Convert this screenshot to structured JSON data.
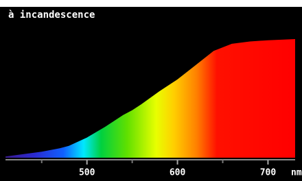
{
  "chart_data": {
    "type": "area",
    "title": "à incandescence",
    "x": [
      410,
      430,
      450,
      470,
      480,
      500,
      520,
      540,
      550,
      560,
      580,
      600,
      620,
      640,
      660,
      680,
      700,
      730
    ],
    "values": [
      1,
      3,
      5,
      8,
      10,
      17,
      26,
      36,
      40,
      45,
      56,
      66,
      78,
      90,
      96,
      98,
      99,
      100
    ],
    "xlim": [
      410,
      730
    ],
    "ylim": [
      0,
      100
    ],
    "xticks": [
      500,
      600,
      700
    ],
    "xminorticks": [
      450,
      550,
      650
    ],
    "x_label": "nm"
  }
}
